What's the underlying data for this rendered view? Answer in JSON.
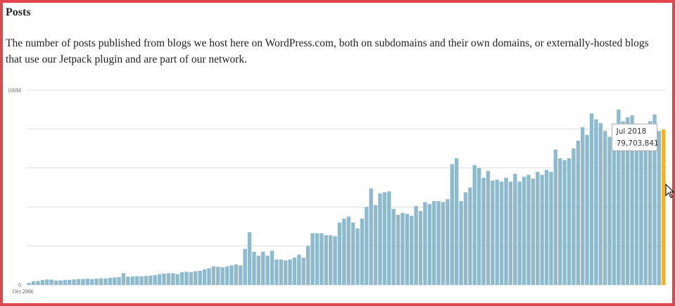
{
  "chart_data": {
    "type": "bar",
    "title": "Posts",
    "subtitle": "The number of posts published from blogs we host here on WordPress.com, both on subdomains and their own domains, or externally-hosted blogs that use our Jetpack plugin and are part of our network.",
    "categories": [
      "Oct 2006",
      null,
      null,
      null,
      null,
      null,
      null,
      null,
      null,
      null,
      null,
      null,
      null,
      null,
      null,
      null,
      null,
      null,
      null,
      null,
      null,
      null,
      null,
      null,
      null,
      null,
      null,
      null,
      null,
      null,
      null,
      null,
      null,
      null,
      null,
      null,
      null,
      null,
      null,
      null,
      null,
      null,
      null,
      null,
      null,
      null,
      null,
      null,
      null,
      null,
      null,
      null,
      null,
      null,
      null,
      null,
      null,
      null,
      null,
      null,
      null,
      null,
      null,
      null,
      null,
      null,
      null,
      null,
      null,
      null,
      null,
      null,
      null,
      null,
      null,
      null,
      null,
      null,
      null,
      null,
      null,
      null,
      null,
      null,
      null,
      null,
      null,
      null,
      null,
      null,
      null,
      null,
      null,
      null,
      null,
      null,
      null,
      null,
      null,
      null,
      null,
      null,
      null,
      null,
      null,
      null,
      null,
      null,
      null,
      null,
      null,
      null,
      null,
      null,
      null,
      null,
      null,
      null,
      null,
      null,
      null,
      null,
      null,
      null,
      null,
      null,
      null,
      null,
      null,
      null,
      null,
      null,
      null,
      null,
      null,
      null,
      null,
      null,
      null,
      null,
      null,
      "Jul 2018"
    ],
    "values": [
      1000000,
      1800000,
      2000000,
      2500000,
      2800000,
      2700000,
      2200000,
      2300000,
      2500000,
      2600000,
      2800000,
      3000000,
      3000000,
      3200000,
      3000000,
      3200000,
      3400000,
      3300000,
      3600000,
      3800000,
      4000000,
      6000000,
      4200000,
      4300000,
      4500000,
      4400000,
      4600000,
      4800000,
      5000000,
      5500000,
      5800000,
      6000000,
      6000000,
      5500000,
      6500000,
      6800000,
      6500000,
      7000000,
      7200000,
      8000000,
      8500000,
      9500000,
      9300000,
      9000000,
      9500000,
      10000000,
      10500000,
      10000000,
      18500000,
      27000000,
      17000000,
      15000000,
      17000000,
      15000000,
      17500000,
      13000000,
      13000000,
      12500000,
      13000000,
      14000000,
      15500000,
      14000000,
      20000000,
      26500000,
      26500000,
      26500000,
      25500000,
      25500000,
      25000000,
      32000000,
      34000000,
      35000000,
      32000000,
      29000000,
      34000000,
      40000000,
      49500000,
      41000000,
      47000000,
      47500000,
      48000000,
      39000000,
      36000000,
      37000000,
      36500000,
      35500000,
      40500000,
      38000000,
      42500000,
      41500000,
      43000000,
      43000000,
      42500000,
      44000000,
      62000000,
      65000000,
      43000000,
      47500000,
      50000000,
      61500000,
      60000000,
      55000000,
      58500000,
      53500000,
      54000000,
      53000000,
      55000000,
      53000000,
      57000000,
      53000000,
      55500000,
      56500000,
      54500000,
      58000000,
      56500000,
      59000000,
      58000000,
      69500000,
      65000000,
      64000000,
      65000000,
      70000000,
      74000000,
      81000000,
      77000000,
      88000000,
      85000000,
      83000000,
      79000000,
      76000000,
      79000000,
      90000000,
      84000000,
      86000000,
      87000000,
      78000000,
      82000000,
      79000000,
      84000000,
      87500000,
      79000000,
      79703841
    ],
    "value_labels": [
      null,
      null,
      null,
      null,
      null,
      null,
      null,
      null,
      null,
      null,
      null,
      null,
      null,
      null,
      null,
      null,
      null,
      null,
      null,
      null,
      null,
      null,
      null,
      null,
      null,
      null,
      null,
      null,
      null,
      null,
      null,
      null,
      null,
      null,
      null,
      null,
      null,
      null,
      null,
      null,
      null,
      null,
      null,
      null,
      null,
      null,
      null,
      null,
      null,
      null,
      null,
      null,
      null,
      null,
      null,
      null,
      null,
      null,
      null,
      null,
      null,
      null,
      null,
      null,
      null,
      null,
      null,
      null,
      null,
      null,
      null,
      null,
      null,
      null,
      null,
      null,
      null,
      null,
      null,
      null,
      null,
      null,
      null,
      null,
      null,
      null,
      null,
      null,
      null,
      null,
      null,
      null,
      null,
      null,
      null,
      null,
      null,
      null,
      null,
      null,
      null,
      null,
      null,
      null,
      null,
      null,
      null,
      null,
      null,
      null,
      null,
      null,
      null,
      null,
      null,
      null,
      null,
      null,
      null,
      null,
      null,
      null,
      null,
      null,
      null,
      null,
      null,
      null,
      null,
      null,
      null,
      null,
      null,
      null,
      null,
      null,
      null,
      null,
      null,
      null,
      null,
      "79,703,841"
    ],
    "color": "#8fbace",
    "highlight_color": "#f6b21b",
    "ylim": [
      0,
      100000000
    ],
    "yticks": [
      0,
      {
        "value": 100000000,
        "label": "100M"
      }
    ],
    "ygrid": [
      0,
      20000000,
      40000000,
      60000000,
      80000000,
      100000000
    ],
    "grid": true
  }
}
